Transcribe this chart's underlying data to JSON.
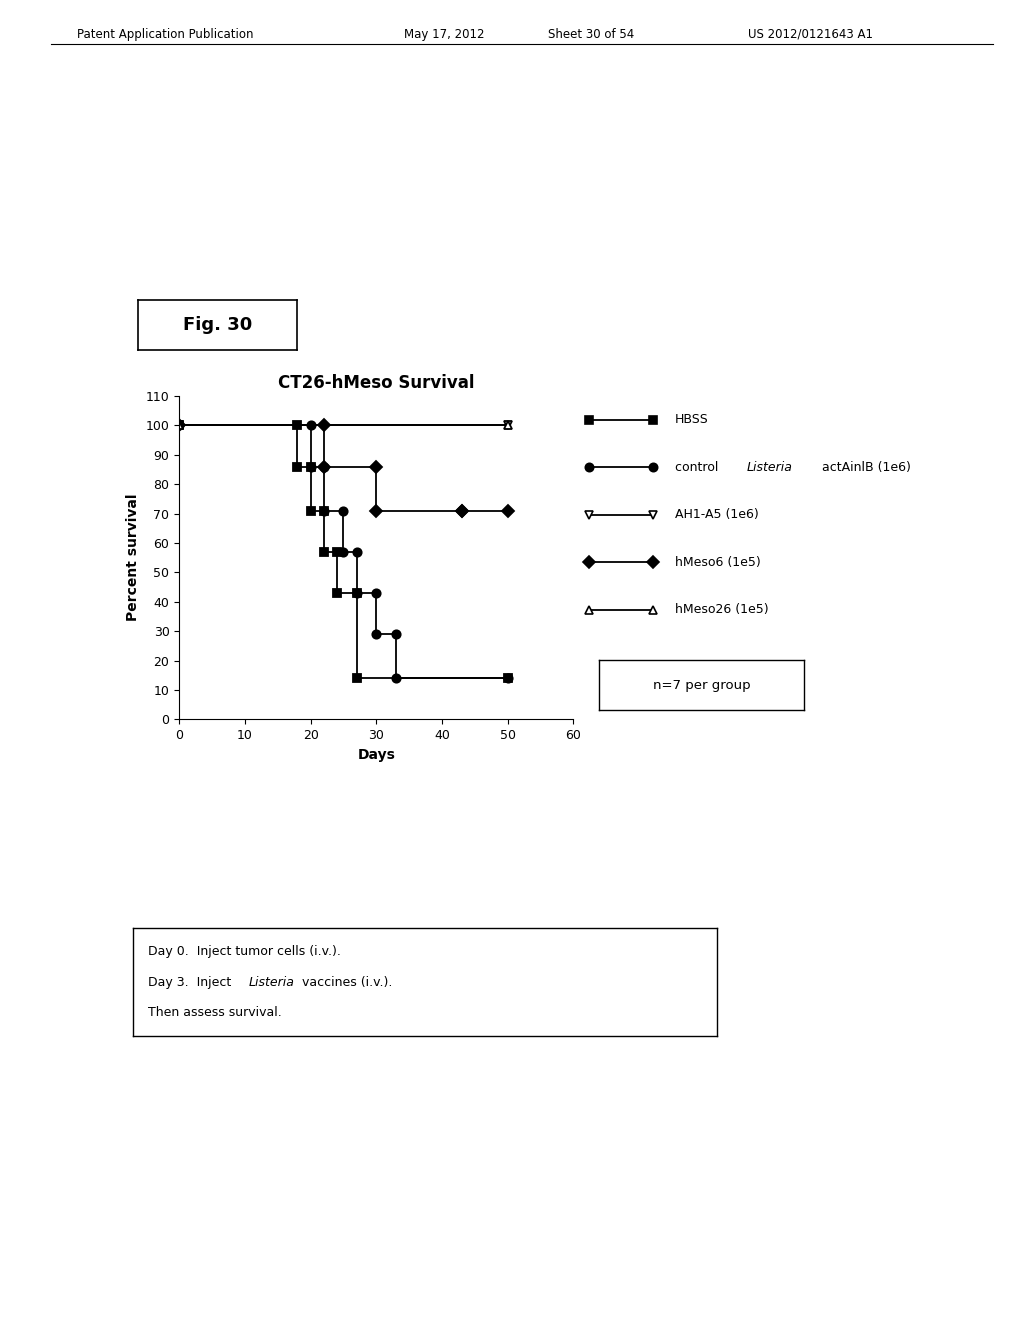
{
  "title": "CT26-hMeso Survival",
  "xlabel": "Days",
  "ylabel": "Percent survival",
  "xlim": [
    0,
    60
  ],
  "ylim": [
    0,
    110
  ],
  "xticks": [
    0,
    10,
    20,
    30,
    40,
    50,
    60
  ],
  "yticks": [
    0,
    10,
    20,
    30,
    40,
    50,
    60,
    70,
    80,
    90,
    100,
    110
  ],
  "fig_label": "Fig. 30",
  "note_line1_pre": "Day 0.  Inject tumor cells (i.v.).",
  "note_line1_italic": "",
  "note_line1_post": "",
  "note_line2_pre": "Day 3.  Inject ",
  "note_line2_italic": "Listeria",
  "note_line2_post": " vaccines (i.v.).",
  "note_line3": "Then assess survival.",
  "series": [
    {
      "name": "HBSS",
      "marker": "s",
      "filled": true,
      "color": "#000000",
      "x": [
        0,
        18,
        18,
        20,
        20,
        22,
        22,
        24,
        24,
        27,
        27,
        50
      ],
      "y": [
        100,
        100,
        86,
        86,
        71,
        71,
        57,
        57,
        43,
        43,
        14,
        14
      ]
    },
    {
      "name": "control Listeria actAinlB (1e6)",
      "marker": "o",
      "filled": true,
      "color": "#000000",
      "x": [
        0,
        20,
        20,
        22,
        22,
        25,
        25,
        27,
        27,
        30,
        30,
        33,
        33,
        50
      ],
      "y": [
        100,
        100,
        86,
        86,
        71,
        71,
        57,
        57,
        43,
        43,
        29,
        29,
        14,
        14
      ]
    },
    {
      "name": "AH1-A5 (1e6)",
      "marker": "v",
      "filled": false,
      "color": "#000000",
      "x": [
        0,
        50
      ],
      "y": [
        100,
        100
      ]
    },
    {
      "name": "hMeso6 (1e5)",
      "marker": "D",
      "filled": true,
      "color": "#000000",
      "x": [
        0,
        22,
        22,
        30,
        30,
        43,
        43,
        50
      ],
      "y": [
        100,
        100,
        86,
        86,
        71,
        71,
        71,
        71
      ]
    },
    {
      "name": "hMeso26 (1e5)",
      "marker": "^",
      "filled": false,
      "color": "#000000",
      "x": [
        0,
        50
      ],
      "y": [
        100,
        100
      ]
    }
  ],
  "legend_items": [
    {
      "label": "HBSS",
      "marker": "s",
      "filled": true,
      "label_pre": "",
      "italic": "",
      "label_post": ""
    },
    {
      "label": "",
      "marker": "o",
      "filled": true,
      "label_pre": "control ",
      "italic": "Listeria",
      "label_post": " actAinlB (1e6)"
    },
    {
      "label": "AH1-A5 (1e6)",
      "marker": "v",
      "filled": false,
      "label_pre": "",
      "italic": "",
      "label_post": ""
    },
    {
      "label": "hMeso6 (1e5)",
      "marker": "D",
      "filled": true,
      "label_pre": "",
      "italic": "",
      "label_post": ""
    },
    {
      "label": "hMeso26 (1e5)",
      "marker": "^",
      "filled": false,
      "label_pre": "",
      "italic": "",
      "label_post": ""
    }
  ],
  "n_label": "n=7 per group",
  "background_color": "#ffffff",
  "title_fontsize": 12,
  "axis_fontsize": 10,
  "tick_fontsize": 9,
  "legend_fontsize": 9,
  "note_fontsize": 9
}
